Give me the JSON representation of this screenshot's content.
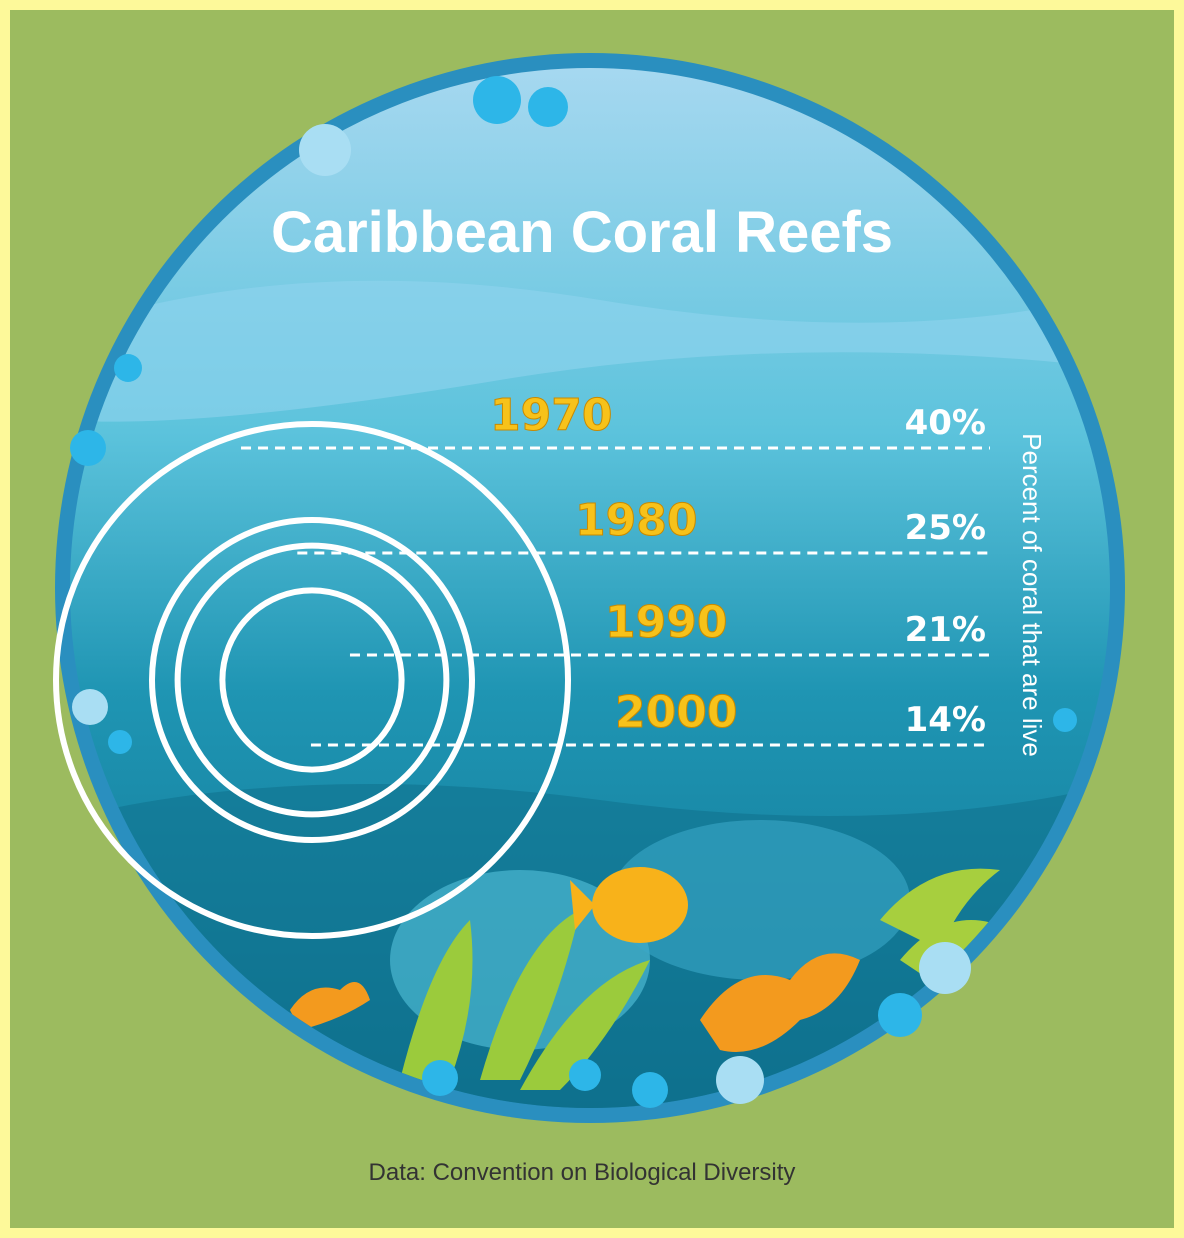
{
  "chart_data": {
    "type": "circles",
    "title": "Caribbean Coral Reefs",
    "y_label": "Percent of coral that are live",
    "source": "Data: Convention on Biological Diversity",
    "categories": [
      "1970",
      "1980",
      "1990",
      "2000"
    ],
    "values": [
      40,
      25,
      21,
      14
    ],
    "value_labels": [
      "40%",
      "25%",
      "21%",
      "14%"
    ],
    "color": "#ffffff"
  }
}
